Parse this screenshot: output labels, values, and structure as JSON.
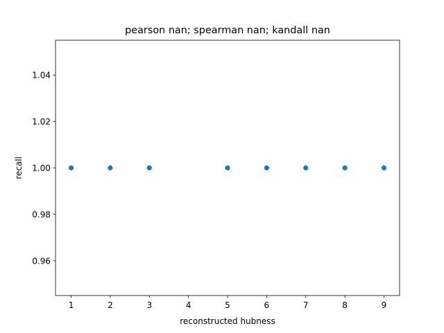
{
  "chart_data": {
    "type": "scatter",
    "title": "pearson nan; spearman nan; kandall nan",
    "xlabel": "reconstructed hubness",
    "ylabel": "recall",
    "x": [
      1,
      2,
      3,
      5,
      6,
      7,
      8,
      9
    ],
    "y": [
      1.0,
      1.0,
      1.0,
      1.0,
      1.0,
      1.0,
      1.0,
      1.0
    ],
    "xlim": [
      0.6,
      9.4
    ],
    "ylim": [
      0.945,
      1.055
    ],
    "xticks": [
      1,
      2,
      3,
      4,
      5,
      6,
      7,
      8,
      9
    ],
    "xtick_labels": [
      "1",
      "2",
      "3",
      "4",
      "5",
      "6",
      "7",
      "8",
      "9"
    ],
    "yticks": [
      0.96,
      0.98,
      1.0,
      1.02,
      1.04
    ],
    "ytick_labels": [
      "0.96",
      "0.98",
      "1.00",
      "1.02",
      "1.04"
    ],
    "grid": false,
    "marker_color": "#1f77b4"
  }
}
